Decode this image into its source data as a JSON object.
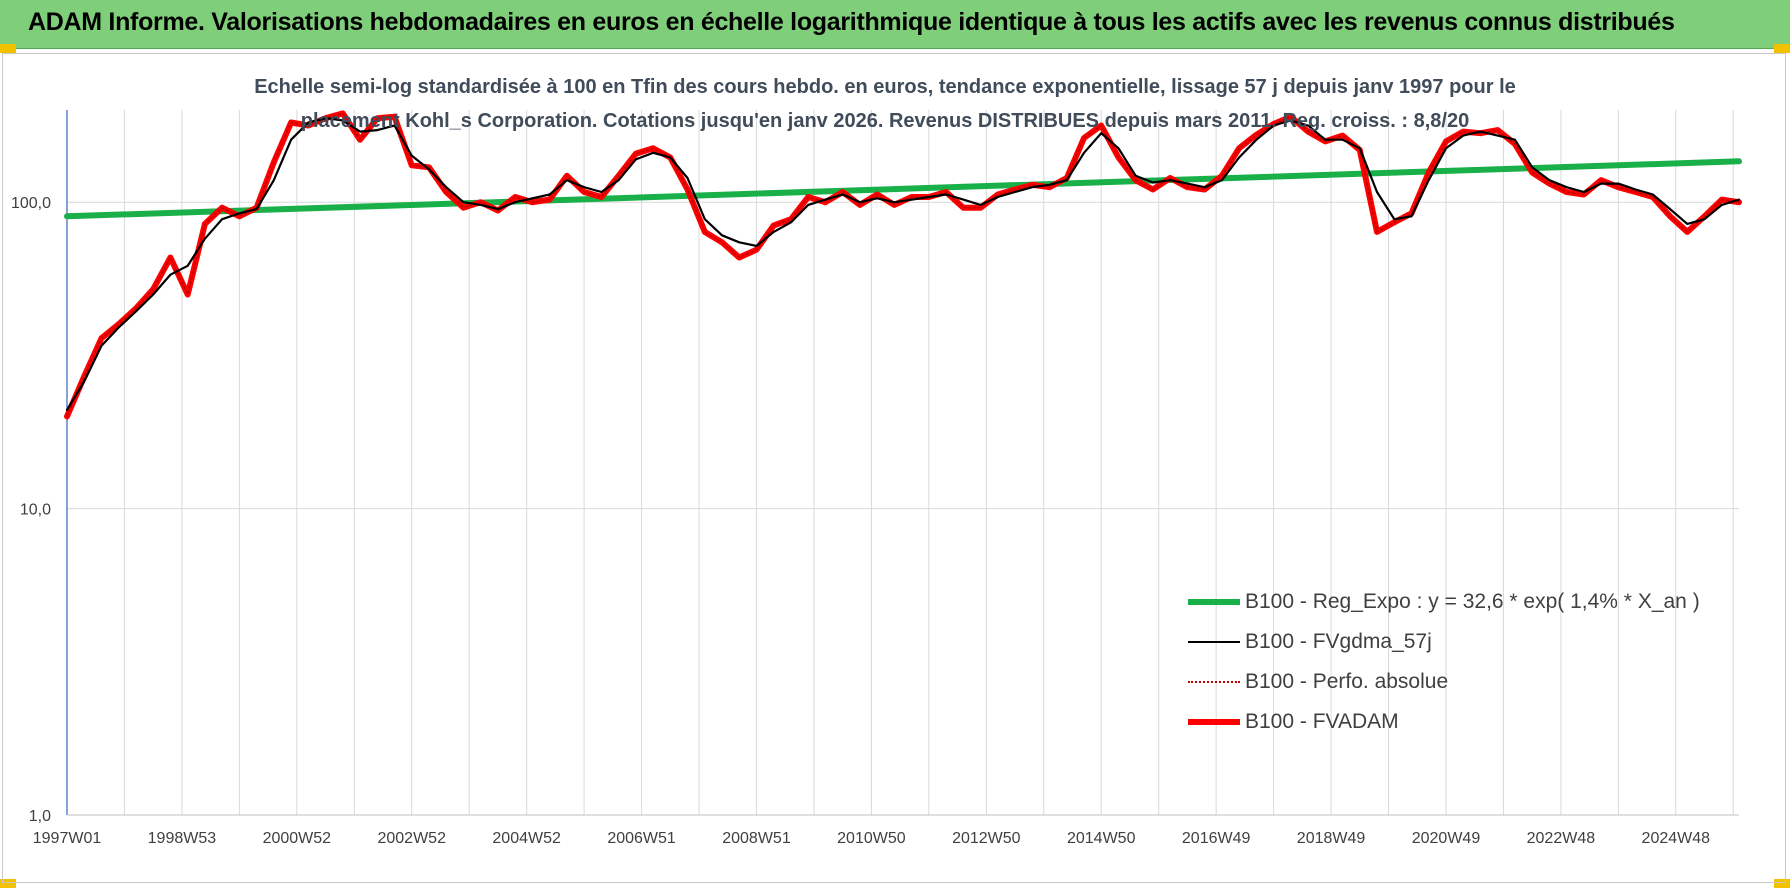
{
  "header": {
    "title": "ADAM Informe. Valorisations hebdomadaires en euros en échelle logarithmique identique à tous les actifs avec les revenus connus distribués"
  },
  "chart_data": {
    "type": "line",
    "title_line1": "Echelle semi-log standardisée à 100 en Tfin des cours hebdo. en euros, tendance exponentielle, lissage 57 j depuis janv 1997 pour le",
    "title_line2": "placement Kohl_s Corporation. Cotations jusqu'en janv 2026. Revenus DISTRIBUES depuis mars 2011. Reg. croiss. : 8,8/20",
    "y_scale": "log",
    "ylim": [
      1,
      200
    ],
    "y_ticks": [
      {
        "value": 1,
        "label": "1,0"
      },
      {
        "value": 10,
        "label": "10,0"
      },
      {
        "value": 100,
        "label": "100,0"
      }
    ],
    "xlim": [
      1997.0,
      2026.1
    ],
    "x_ticks": [
      {
        "value": 1997.0,
        "label": "1997W01"
      },
      {
        "value": 1999.0,
        "label": "1998W53"
      },
      {
        "value": 2001.0,
        "label": "2000W52"
      },
      {
        "value": 2003.0,
        "label": "2002W52"
      },
      {
        "value": 2005.0,
        "label": "2004W52"
      },
      {
        "value": 2007.0,
        "label": "2006W51"
      },
      {
        "value": 2009.0,
        "label": "2008W51"
      },
      {
        "value": 2011.0,
        "label": "2010W50"
      },
      {
        "value": 2013.0,
        "label": "2012W50"
      },
      {
        "value": 2015.0,
        "label": "2014W50"
      },
      {
        "value": 2017.0,
        "label": "2016W49"
      },
      {
        "value": 2019.0,
        "label": "2018W49"
      },
      {
        "value": 2021.0,
        "label": "2020W49"
      },
      {
        "value": 2023.0,
        "label": "2022W48"
      },
      {
        "value": 2025.0,
        "label": "2024W48"
      }
    ],
    "grid": "vertical-and-horizontal",
    "legend_position": "bottom-right",
    "series": [
      {
        "name": "B100 - Reg_Expo : y = 32,6 * exp( 1,4% *  X_an )",
        "color": "#19b04a",
        "style": "thick",
        "x": [
          1997.0,
          2026.1
        ],
        "values": [
          90,
          136
        ]
      },
      {
        "name": "B100 - FVgdma_57j",
        "color": "#000000",
        "style": "thin",
        "x": [
          1997.0,
          1997.3,
          1997.6,
          1997.9,
          1998.2,
          1998.5,
          1998.8,
          1999.1,
          1999.4,
          1999.7,
          2000.0,
          2000.3,
          2000.6,
          2000.9,
          2001.2,
          2001.5,
          2001.8,
          2002.1,
          2002.4,
          2002.7,
          2003.0,
          2003.3,
          2003.6,
          2003.9,
          2004.2,
          2004.5,
          2004.8,
          2005.1,
          2005.4,
          2005.7,
          2006.0,
          2006.3,
          2006.6,
          2006.9,
          2007.2,
          2007.5,
          2007.8,
          2008.1,
          2008.4,
          2008.7,
          2009.0,
          2009.3,
          2009.6,
          2009.9,
          2010.2,
          2010.5,
          2010.8,
          2011.1,
          2011.4,
          2011.7,
          2012.0,
          2012.3,
          2012.6,
          2012.9,
          2013.2,
          2013.5,
          2013.8,
          2014.1,
          2014.4,
          2014.7,
          2015.0,
          2015.3,
          2015.6,
          2015.9,
          2016.2,
          2016.5,
          2016.8,
          2017.1,
          2017.4,
          2017.7,
          2018.0,
          2018.3,
          2018.6,
          2018.9,
          2019.2,
          2019.5,
          2019.8,
          2020.1,
          2020.4,
          2020.7,
          2021.0,
          2021.3,
          2021.6,
          2021.9,
          2022.2,
          2022.5,
          2022.8,
          2023.1,
          2023.4,
          2023.7,
          2024.0,
          2024.3,
          2024.6,
          2024.9,
          2025.2,
          2025.5,
          2025.8,
          2026.1
        ],
        "values": [
          21,
          26,
          34,
          39,
          44,
          50,
          58,
          62,
          76,
          88,
          92,
          95,
          118,
          160,
          182,
          188,
          185,
          170,
          172,
          178,
          142,
          128,
          112,
          100,
          98,
          95,
          100,
          103,
          106,
          118,
          112,
          108,
          118,
          138,
          145,
          140,
          120,
          88,
          78,
          74,
          72,
          80,
          86,
          98,
          102,
          106,
          100,
          103,
          100,
          102,
          104,
          106,
          102,
          98,
          104,
          108,
          112,
          114,
          118,
          145,
          168,
          150,
          122,
          116,
          118,
          115,
          112,
          118,
          140,
          160,
          178,
          185,
          178,
          160,
          160,
          150,
          108,
          88,
          90,
          118,
          150,
          165,
          170,
          165,
          160,
          130,
          118,
          112,
          108,
          115,
          115,
          110,
          106,
          95,
          85,
          88,
          98,
          102
        ]
      },
      {
        "name": "B100 - Perfo. absolue",
        "color": "#c00000",
        "style": "dotted",
        "x": [
          1997.0,
          1997.3,
          1997.6,
          1997.9,
          1998.2,
          1998.5,
          1998.8,
          1999.1,
          1999.4,
          1999.7,
          2000.0,
          2000.3,
          2000.6,
          2000.9,
          2001.2,
          2001.5,
          2001.8,
          2002.1,
          2002.4,
          2002.7,
          2003.0,
          2003.3,
          2003.6,
          2003.9,
          2004.2,
          2004.5,
          2004.8,
          2005.1,
          2005.4,
          2005.7,
          2006.0,
          2006.3,
          2006.6,
          2006.9,
          2007.2,
          2007.5,
          2007.8,
          2008.1,
          2008.4,
          2008.7,
          2009.0,
          2009.3,
          2009.6,
          2009.9,
          2010.2,
          2010.5,
          2010.8,
          2011.1,
          2011.4,
          2011.7,
          2012.0,
          2012.3,
          2012.6,
          2012.9,
          2013.2,
          2013.5,
          2013.8,
          2014.1,
          2014.4,
          2014.7,
          2015.0,
          2015.3,
          2015.6,
          2015.9,
          2016.2,
          2016.5,
          2016.8,
          2017.1,
          2017.4,
          2017.7,
          2018.0,
          2018.3,
          2018.6,
          2018.9,
          2019.2,
          2019.5,
          2019.8,
          2020.1,
          2020.4,
          2020.7,
          2021.0,
          2021.3,
          2021.6,
          2021.9,
          2022.2,
          2022.5,
          2022.8,
          2023.1,
          2023.4,
          2023.7,
          2024.0,
          2024.3,
          2024.6,
          2024.9,
          2025.2,
          2025.5,
          2025.8,
          2026.1
        ],
        "values": [
          20,
          27,
          36,
          40,
          45,
          52,
          66,
          50,
          85,
          96,
          90,
          96,
          135,
          182,
          178,
          188,
          195,
          160,
          188,
          190,
          132,
          130,
          108,
          96,
          100,
          94,
          104,
          100,
          102,
          122,
          108,
          104,
          122,
          144,
          150,
          140,
          110,
          80,
          74,
          66,
          70,
          84,
          88,
          104,
          100,
          108,
          98,
          106,
          98,
          104,
          104,
          108,
          96,
          96,
          106,
          110,
          114,
          112,
          120,
          162,
          178,
          140,
          118,
          110,
          120,
          112,
          110,
          122,
          150,
          166,
          180,
          190,
          170,
          158,
          165,
          148,
          80,
          86,
          92,
          125,
          158,
          170,
          168,
          172,
          155,
          125,
          115,
          108,
          106,
          118,
          112,
          108,
          104,
          90,
          80,
          90,
          102,
          100
        ]
      },
      {
        "name": "B100 - FVADAM",
        "color": "#ff0000",
        "style": "thick",
        "x": [
          1997.0,
          1997.3,
          1997.6,
          1997.9,
          1998.2,
          1998.5,
          1998.8,
          1999.1,
          1999.4,
          1999.7,
          2000.0,
          2000.3,
          2000.6,
          2000.9,
          2001.2,
          2001.5,
          2001.8,
          2002.1,
          2002.4,
          2002.7,
          2003.0,
          2003.3,
          2003.6,
          2003.9,
          2004.2,
          2004.5,
          2004.8,
          2005.1,
          2005.4,
          2005.7,
          2006.0,
          2006.3,
          2006.6,
          2006.9,
          2007.2,
          2007.5,
          2007.8,
          2008.1,
          2008.4,
          2008.7,
          2009.0,
          2009.3,
          2009.6,
          2009.9,
          2010.2,
          2010.5,
          2010.8,
          2011.1,
          2011.4,
          2011.7,
          2012.0,
          2012.3,
          2012.6,
          2012.9,
          2013.2,
          2013.5,
          2013.8,
          2014.1,
          2014.4,
          2014.7,
          2015.0,
          2015.3,
          2015.6,
          2015.9,
          2016.2,
          2016.5,
          2016.8,
          2017.1,
          2017.4,
          2017.7,
          2018.0,
          2018.3,
          2018.6,
          2018.9,
          2019.2,
          2019.5,
          2019.8,
          2020.1,
          2020.4,
          2020.7,
          2021.0,
          2021.3,
          2021.6,
          2021.9,
          2022.2,
          2022.5,
          2022.8,
          2023.1,
          2023.4,
          2023.7,
          2024.0,
          2024.3,
          2024.6,
          2024.9,
          2025.2,
          2025.5,
          2025.8,
          2026.1
        ],
        "values": [
          20,
          27,
          36,
          40,
          45,
          52,
          66,
          50,
          85,
          96,
          90,
          96,
          135,
          182,
          178,
          188,
          195,
          160,
          188,
          190,
          132,
          130,
          108,
          96,
          100,
          94,
          104,
          100,
          102,
          122,
          108,
          104,
          122,
          144,
          150,
          140,
          110,
          80,
          74,
          66,
          70,
          84,
          88,
          104,
          100,
          108,
          98,
          106,
          98,
          104,
          104,
          108,
          96,
          96,
          106,
          110,
          114,
          112,
          120,
          162,
          178,
          140,
          118,
          110,
          120,
          112,
          110,
          122,
          150,
          166,
          180,
          190,
          170,
          158,
          165,
          148,
          80,
          86,
          92,
          125,
          158,
          170,
          168,
          172,
          155,
          125,
          115,
          108,
          106,
          118,
          112,
          108,
          104,
          90,
          80,
          90,
          102,
          100
        ]
      }
    ]
  }
}
